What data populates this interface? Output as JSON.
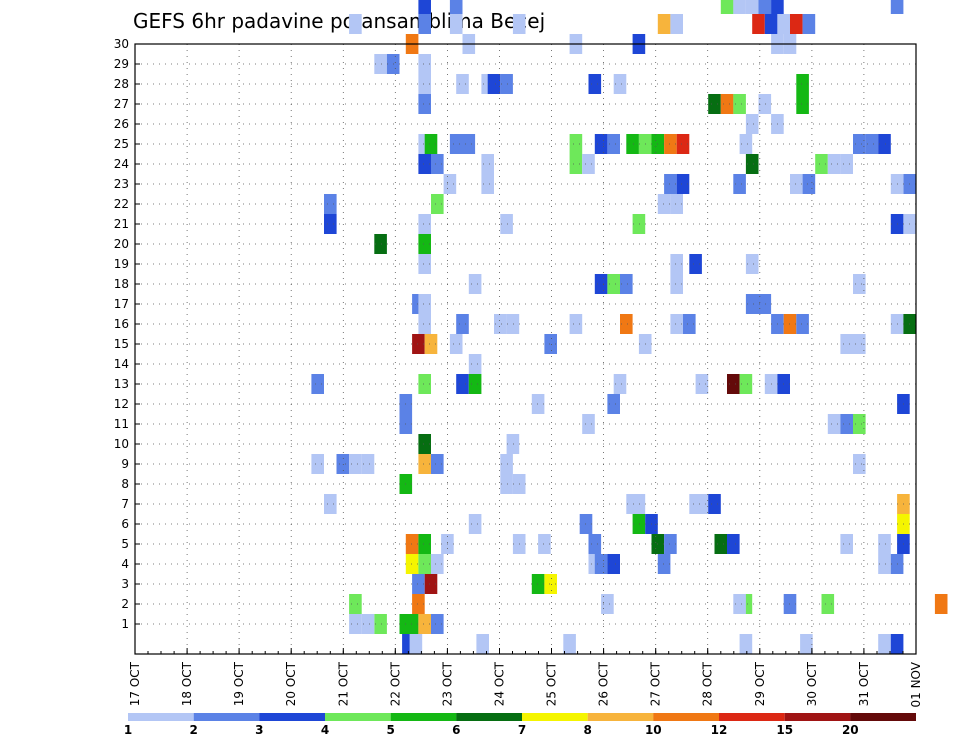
{
  "chart_data": {
    "type": "heatmap",
    "title": "GEFS 6hr padavine po ansamblima Becej",
    "xlabel": "",
    "ylabel": "",
    "x_tick_labels": [
      "17 OCT",
      "18 OCT",
      "19 OCT",
      "20 OCT",
      "21 OCT",
      "22 OCT",
      "23 OCT",
      "24 OCT",
      "25 OCT",
      "26 OCT",
      "27 OCT",
      "28 OCT",
      "29 OCT",
      "30 OCT",
      "31 OCT",
      "01 NOV"
    ],
    "y_tick_labels": [
      "1",
      "2",
      "3",
      "4",
      "5",
      "6",
      "7",
      "8",
      "9",
      "10",
      "11",
      "12",
      "13",
      "14",
      "15",
      "16",
      "17",
      "18",
      "19",
      "20",
      "21",
      "22",
      "23",
      "24",
      "25",
      "26",
      "27",
      "28",
      "29",
      "30"
    ],
    "ylim": [
      0,
      30
    ],
    "grid": true,
    "colorbar": {
      "labels": [
        "1",
        "2",
        "3",
        "4",
        "5",
        "6",
        "7",
        "8",
        "10",
        "12",
        "15",
        "20"
      ],
      "colors": [
        "#b3c6f5",
        "#5b82e6",
        "#1e46d6",
        "#6ee85a",
        "#14b814",
        "#066e12",
        "#f5f500",
        "#f7b43c",
        "#f07814",
        "#dc2814",
        "#a01414",
        "#640a0a"
      ]
    },
    "cells": [
      [
        21.7,
        1,
        "#1e46d6"
      ],
      [
        22.3,
        1,
        "#b3c6f5"
      ],
      [
        27.6,
        1,
        "#b3c6f5"
      ],
      [
        34.5,
        1,
        "#b3c6f5"
      ],
      [
        48.5,
        1,
        "#b3c6f5"
      ],
      [
        53.3,
        1,
        "#b3c6f5"
      ],
      [
        59.5,
        1,
        "#b3c6f5"
      ],
      [
        60.5,
        1,
        "#1e46d6"
      ],
      [
        21.5,
        2,
        "#14b814"
      ],
      [
        22,
        2,
        "#14b814"
      ],
      [
        23,
        2,
        "#f7b43c"
      ],
      [
        24,
        2,
        "#5b82e6"
      ],
      [
        19.5,
        2,
        "#6ee85a"
      ],
      [
        17.5,
        2,
        "#b3c6f5"
      ],
      [
        18.5,
        2,
        "#b3c6f5"
      ],
      [
        17.5,
        3,
        "#6ee85a"
      ],
      [
        22.5,
        3,
        "#f07814"
      ],
      [
        48.5,
        3,
        "#6ee85a"
      ],
      [
        52,
        3,
        "#5b82e6"
      ],
      [
        55,
        3,
        "#6ee85a"
      ],
      [
        64,
        3,
        "#f07814"
      ],
      [
        37.5,
        3,
        "#b3c6f5"
      ],
      [
        48,
        3,
        "#b3c6f5"
      ],
      [
        22.5,
        4,
        "#5b82e6"
      ],
      [
        23.5,
        4,
        "#a01414"
      ],
      [
        32,
        4,
        "#14b814"
      ],
      [
        33,
        4,
        "#f5f500"
      ],
      [
        22,
        5,
        "#f5f500"
      ],
      [
        23,
        5,
        "#6ee85a"
      ],
      [
        24,
        5,
        "#b3c6f5"
      ],
      [
        36.5,
        5,
        "#b3c6f5"
      ],
      [
        37,
        5,
        "#5b82e6"
      ],
      [
        38,
        5,
        "#1e46d6"
      ],
      [
        42,
        5,
        "#5b82e6"
      ],
      [
        59.5,
        5,
        "#b3c6f5"
      ],
      [
        60.5,
        5,
        "#5b82e6"
      ],
      [
        22,
        6,
        "#f07814"
      ],
      [
        23,
        6,
        "#14b814"
      ],
      [
        24.8,
        6,
        "#b3c6f5"
      ],
      [
        30.5,
        6,
        "#b3c6f5"
      ],
      [
        32.5,
        6,
        "#b3c6f5"
      ],
      [
        36.5,
        6,
        "#5b82e6"
      ],
      [
        41.5,
        6,
        "#066e12"
      ],
      [
        42.5,
        6,
        "#5b82e6"
      ],
      [
        46.5,
        6,
        "#066e12"
      ],
      [
        47.5,
        6,
        "#1e46d6"
      ],
      [
        56.5,
        6,
        "#b3c6f5"
      ],
      [
        59.5,
        6,
        "#b3c6f5"
      ],
      [
        61,
        6,
        "#1e46d6"
      ],
      [
        27,
        7,
        "#b3c6f5"
      ],
      [
        35.8,
        7,
        "#5b82e6"
      ],
      [
        40,
        7,
        "#14b814"
      ],
      [
        41,
        7,
        "#1e46d6"
      ],
      [
        61,
        7,
        "#f5f500"
      ],
      [
        15.5,
        8,
        "#b3c6f5"
      ],
      [
        40,
        8,
        "#b3c6f5"
      ],
      [
        44.5,
        8,
        "#b3c6f5"
      ],
      [
        39.5,
        8,
        "#b3c6f5"
      ],
      [
        45,
        8,
        "#b3c6f5"
      ],
      [
        46,
        8,
        "#1e46d6"
      ],
      [
        61,
        8,
        "#f7b43c"
      ],
      [
        21.5,
        9,
        "#14b814"
      ],
      [
        29.5,
        9,
        "#b3c6f5"
      ],
      [
        30.5,
        9,
        "#b3c6f5"
      ],
      [
        14.5,
        10,
        "#b3c6f5"
      ],
      [
        16.5,
        10,
        "#5b82e6"
      ],
      [
        17.5,
        10,
        "#b3c6f5"
      ],
      [
        18.5,
        10,
        "#b3c6f5"
      ],
      [
        23,
        10,
        "#f7b43c"
      ],
      [
        24,
        10,
        "#5b82e6"
      ],
      [
        29.5,
        10,
        "#b3c6f5"
      ],
      [
        57.5,
        10,
        "#b3c6f5"
      ],
      [
        23,
        11,
        "#066e12"
      ],
      [
        30,
        11,
        "#b3c6f5"
      ],
      [
        21.5,
        12,
        "#5b82e6"
      ],
      [
        36,
        12,
        "#b3c6f5"
      ],
      [
        55.5,
        12,
        "#b3c6f5"
      ],
      [
        56.5,
        12,
        "#5b82e6"
      ],
      [
        57.5,
        12,
        "#6ee85a"
      ],
      [
        21.5,
        13,
        "#5b82e6"
      ],
      [
        32,
        13,
        "#b3c6f5"
      ],
      [
        38,
        13,
        "#5b82e6"
      ],
      [
        61,
        13,
        "#1e46d6"
      ],
      [
        14.5,
        14,
        "#5b82e6"
      ],
      [
        23,
        14,
        "#6ee85a"
      ],
      [
        26,
        14,
        "#1e46d6"
      ],
      [
        27,
        14,
        "#14b814"
      ],
      [
        38.5,
        14,
        "#b3c6f5"
      ],
      [
        45,
        14,
        "#b3c6f5"
      ],
      [
        47.5,
        14,
        "#640a0a"
      ],
      [
        48.5,
        14,
        "#6ee85a"
      ],
      [
        50.5,
        14,
        "#b3c6f5"
      ],
      [
        51.5,
        14,
        "#1e46d6"
      ],
      [
        27,
        15,
        "#b3c6f5"
      ],
      [
        22.5,
        16,
        "#a01414"
      ],
      [
        23.5,
        16,
        "#f7b43c"
      ],
      [
        25.5,
        16,
        "#b3c6f5"
      ],
      [
        33,
        16,
        "#5b82e6"
      ],
      [
        40.5,
        16,
        "#b3c6f5"
      ],
      [
        56.5,
        16,
        "#b3c6f5"
      ],
      [
        57.5,
        16,
        "#b3c6f5"
      ],
      [
        23,
        17,
        "#b3c6f5"
      ],
      [
        26,
        17,
        "#5b82e6"
      ],
      [
        29,
        17,
        "#b3c6f5"
      ],
      [
        30,
        17,
        "#b3c6f5"
      ],
      [
        35,
        17,
        "#b3c6f5"
      ],
      [
        39,
        17,
        "#f07814"
      ],
      [
        43,
        17,
        "#b3c6f5"
      ],
      [
        44,
        17,
        "#5b82e6"
      ],
      [
        51,
        17,
        "#5b82e6"
      ],
      [
        52,
        17,
        "#f07814"
      ],
      [
        53,
        17,
        "#5b82e6"
      ],
      [
        60.5,
        17,
        "#b3c6f5"
      ],
      [
        61.5,
        17,
        "#066e12"
      ],
      [
        22.5,
        18,
        "#5b82e6"
      ],
      [
        23,
        18,
        "#b3c6f5"
      ],
      [
        49,
        18,
        "#5b82e6"
      ],
      [
        50,
        18,
        "#5b82e6"
      ],
      [
        27,
        19,
        "#b3c6f5"
      ],
      [
        37,
        19,
        "#1e46d6"
      ],
      [
        38,
        19,
        "#6ee85a"
      ],
      [
        39,
        19,
        "#5b82e6"
      ],
      [
        43,
        19,
        "#b3c6f5"
      ],
      [
        57.5,
        19,
        "#b3c6f5"
      ],
      [
        23,
        20,
        "#b3c6f5"
      ],
      [
        43,
        20,
        "#b3c6f5"
      ],
      [
        44.5,
        20,
        "#1e46d6"
      ],
      [
        49,
        20,
        "#b3c6f5"
      ],
      [
        19.5,
        21,
        "#066e12"
      ],
      [
        23,
        21,
        "#14b814"
      ],
      [
        15.5,
        22,
        "#1e46d6"
      ],
      [
        23,
        22,
        "#b3c6f5"
      ],
      [
        29.5,
        22,
        "#b3c6f5"
      ],
      [
        40,
        22,
        "#6ee85a"
      ],
      [
        60.5,
        22,
        "#1e46d6"
      ],
      [
        61.5,
        22,
        "#b3c6f5"
      ],
      [
        15.5,
        23,
        "#5b82e6"
      ],
      [
        24,
        23,
        "#6ee85a"
      ],
      [
        42,
        23,
        "#b3c6f5"
      ],
      [
        43,
        23,
        "#b3c6f5"
      ],
      [
        25,
        24,
        "#b3c6f5"
      ],
      [
        28,
        24,
        "#b3c6f5"
      ],
      [
        42.5,
        24,
        "#5b82e6"
      ],
      [
        43.5,
        24,
        "#1e46d6"
      ],
      [
        48,
        24,
        "#5b82e6"
      ],
      [
        52.5,
        24,
        "#b3c6f5"
      ],
      [
        53.5,
        24,
        "#5b82e6"
      ],
      [
        61.5,
        24,
        "#5b82e6"
      ],
      [
        60.5,
        24,
        "#b3c6f5"
      ],
      [
        23,
        25,
        "#1e46d6"
      ],
      [
        24,
        25,
        "#5b82e6"
      ],
      [
        28,
        25,
        "#b3c6f5"
      ],
      [
        35,
        25,
        "#6ee85a"
      ],
      [
        36,
        25,
        "#b3c6f5"
      ],
      [
        49,
        25,
        "#066e12"
      ],
      [
        54.5,
        25,
        "#6ee85a"
      ],
      [
        55.5,
        25,
        "#b3c6f5"
      ],
      [
        56.5,
        25,
        "#b3c6f5"
      ],
      [
        23,
        26,
        "#b3c6f5"
      ],
      [
        23.5,
        26,
        "#14b814"
      ],
      [
        25.5,
        26,
        "#5b82e6"
      ],
      [
        26.5,
        26,
        "#5b82e6"
      ],
      [
        35,
        26,
        "#6ee85a"
      ],
      [
        37,
        26,
        "#1e46d6"
      ],
      [
        38,
        26,
        "#5b82e6"
      ],
      [
        39.5,
        26,
        "#14b814"
      ],
      [
        40.5,
        26,
        "#6ee85a"
      ],
      [
        41.5,
        26,
        "#14b814"
      ],
      [
        42.5,
        26,
        "#f07814"
      ],
      [
        43.5,
        26,
        "#dc2814"
      ],
      [
        48.5,
        26,
        "#b3c6f5"
      ],
      [
        57.5,
        26,
        "#5b82e6"
      ],
      [
        58.5,
        26,
        "#5b82e6"
      ],
      [
        59.5,
        26,
        "#1e46d6"
      ],
      [
        49,
        27,
        "#b3c6f5"
      ],
      [
        51,
        27,
        "#b3c6f5"
      ],
      [
        23,
        28,
        "#5b82e6"
      ],
      [
        46,
        28,
        "#066e12"
      ],
      [
        47,
        28,
        "#f07814"
      ],
      [
        48,
        28,
        "#6ee85a"
      ],
      [
        50,
        28,
        "#b3c6f5"
      ],
      [
        53,
        28,
        "#14b814"
      ],
      [
        23,
        29,
        "#b3c6f5"
      ],
      [
        26,
        29,
        "#b3c6f5"
      ],
      [
        28,
        29,
        "#b3c6f5"
      ],
      [
        28.5,
        29,
        "#1e46d6"
      ],
      [
        29.5,
        29,
        "#5b82e6"
      ],
      [
        36.5,
        29,
        "#1e46d6"
      ],
      [
        38.5,
        29,
        "#b3c6f5"
      ],
      [
        53,
        29,
        "#14b814"
      ],
      [
        19.5,
        30,
        "#b3c6f5"
      ],
      [
        20.5,
        30,
        "#5b82e6"
      ],
      [
        23,
        30,
        "#b3c6f5"
      ],
      [
        22,
        31,
        "#f07814"
      ],
      [
        26.5,
        31,
        "#b3c6f5"
      ],
      [
        35,
        31,
        "#b3c6f5"
      ],
      [
        40,
        31,
        "#1e46d6"
      ],
      [
        51,
        31,
        "#b3c6f5"
      ],
      [
        52,
        31,
        "#b3c6f5"
      ],
      [
        17.5,
        32,
        "#b3c6f5"
      ],
      [
        25.5,
        32,
        "#b3c6f5"
      ],
      [
        23,
        32,
        "#5b82e6"
      ],
      [
        30.5,
        32,
        "#b3c6f5"
      ],
      [
        42,
        32,
        "#f7b43c"
      ],
      [
        43,
        32,
        "#b3c6f5"
      ],
      [
        49.5,
        32,
        "#dc2814"
      ],
      [
        50.5,
        32,
        "#1e46d6"
      ],
      [
        51.5,
        32,
        "#b3c6f5"
      ],
      [
        52.5,
        32,
        "#dc2814"
      ],
      [
        53.5,
        32,
        "#5b82e6"
      ],
      [
        23,
        33,
        "#1e46d6"
      ],
      [
        25.5,
        33,
        "#5b82e6"
      ],
      [
        47,
        33,
        "#6ee85a"
      ],
      [
        48,
        33,
        "#b3c6f5"
      ],
      [
        49,
        33,
        "#b3c6f5"
      ],
      [
        50,
        33,
        "#5b82e6"
      ],
      [
        51,
        33,
        "#1e46d6"
      ],
      [
        60.5,
        33,
        "#5b82e6"
      ]
    ]
  }
}
